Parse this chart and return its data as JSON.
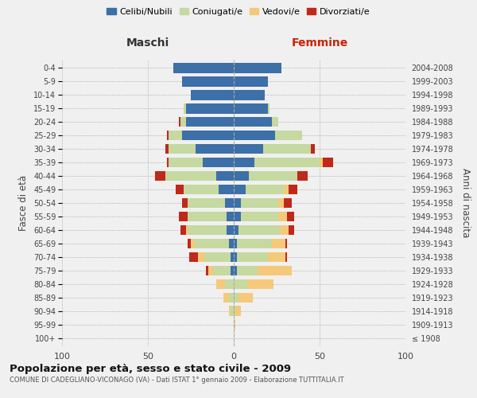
{
  "age_groups": [
    "100+",
    "95-99",
    "90-94",
    "85-89",
    "80-84",
    "75-79",
    "70-74",
    "65-69",
    "60-64",
    "55-59",
    "50-54",
    "45-49",
    "40-44",
    "35-39",
    "30-34",
    "25-29",
    "20-24",
    "15-19",
    "10-14",
    "5-9",
    "0-4"
  ],
  "birth_years": [
    "≤ 1908",
    "1909-1913",
    "1914-1918",
    "1919-1923",
    "1924-1928",
    "1929-1933",
    "1934-1938",
    "1939-1943",
    "1944-1948",
    "1949-1953",
    "1954-1958",
    "1959-1963",
    "1964-1968",
    "1969-1973",
    "1974-1978",
    "1979-1983",
    "1984-1988",
    "1989-1993",
    "1994-1998",
    "1999-2003",
    "2004-2008"
  ],
  "maschi": {
    "celibi": [
      0,
      0,
      0,
      0,
      0,
      2,
      2,
      3,
      4,
      4,
      5,
      9,
      10,
      18,
      22,
      30,
      28,
      28,
      25,
      30,
      35
    ],
    "coniugati": [
      0,
      0,
      2,
      3,
      5,
      10,
      15,
      20,
      23,
      23,
      22,
      20,
      30,
      20,
      16,
      8,
      3,
      1,
      0,
      0,
      0
    ],
    "vedovi": [
      0,
      0,
      1,
      3,
      5,
      3,
      4,
      2,
      1,
      0,
      0,
      0,
      0,
      0,
      0,
      0,
      0,
      0,
      0,
      0,
      0
    ],
    "divorziati": [
      0,
      0,
      0,
      0,
      0,
      1,
      5,
      2,
      3,
      5,
      3,
      5,
      6,
      1,
      2,
      1,
      1,
      0,
      0,
      0,
      0
    ]
  },
  "femmine": {
    "nubili": [
      0,
      0,
      0,
      0,
      0,
      2,
      2,
      2,
      3,
      4,
      4,
      7,
      9,
      12,
      17,
      24,
      22,
      20,
      18,
      20,
      28
    ],
    "coniugate": [
      0,
      0,
      1,
      3,
      8,
      12,
      18,
      20,
      24,
      22,
      22,
      22,
      28,
      38,
      28,
      16,
      4,
      1,
      0,
      0,
      0
    ],
    "vedove": [
      0,
      1,
      3,
      8,
      15,
      20,
      10,
      8,
      5,
      5,
      3,
      3,
      0,
      2,
      0,
      0,
      0,
      0,
      0,
      0,
      0
    ],
    "divorziate": [
      0,
      0,
      0,
      0,
      0,
      0,
      1,
      1,
      3,
      4,
      5,
      5,
      6,
      6,
      2,
      0,
      0,
      0,
      0,
      0,
      0
    ]
  },
  "colors": {
    "celibi_nubili": "#3d6fa8",
    "coniugati": "#c5d9a0",
    "vedovi": "#f5c97a",
    "divorziati": "#c0281a"
  },
  "xlim": 100,
  "title": "Popolazione per età, sesso e stato civile - 2009",
  "subtitle": "COMUNE DI CADEGLIANO-VICONAGO (VA) - Dati ISTAT 1° gennaio 2009 - Elaborazione TUTTITALIA.IT",
  "ylabel_left": "Fasce di età",
  "ylabel_right": "Anni di nascita",
  "xlabel_left": "Maschi",
  "xlabel_right": "Femmine",
  "background_color": "#f0f0f0"
}
